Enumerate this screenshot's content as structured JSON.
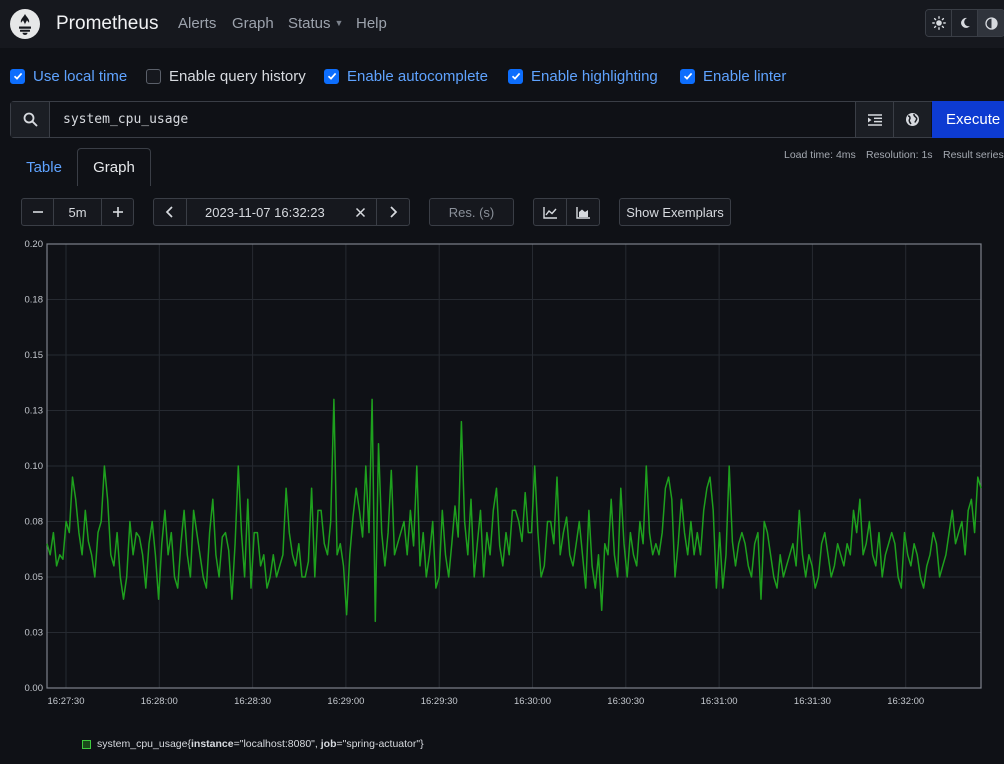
{
  "nav": {
    "brand": "Prometheus",
    "links": {
      "alerts": "Alerts",
      "graph": "Graph",
      "status": "Status",
      "help": "Help"
    }
  },
  "theme": {
    "icons": [
      "sun-icon",
      "moon-icon",
      "half-circle-icon"
    ],
    "active": "half-circle-icon"
  },
  "options": [
    {
      "label": "Use local time",
      "checked": true
    },
    {
      "label": "Enable query history",
      "checked": false
    },
    {
      "label": "Enable autocomplete",
      "checked": true
    },
    {
      "label": "Enable highlighting",
      "checked": true
    },
    {
      "label": "Enable linter",
      "checked": true
    }
  ],
  "query": {
    "expression": "system_cpu_usage",
    "execute_label": "Execute"
  },
  "tabs": {
    "table": "Table",
    "graph": "Graph",
    "active": "graph"
  },
  "stats": {
    "load_time": "Load time: 4ms",
    "resolution": "Resolution: 1s",
    "result_series": "Result series:"
  },
  "controls": {
    "range": "5m",
    "end_time": "2023-11-07 16:32:23",
    "resolution_placeholder": "Res. (s)",
    "show_exemplars": "Show Exemplars"
  },
  "legend": {
    "metric": "system_cpu_usage{",
    "label1_key": "instance",
    "label1_val": "=\"localhost:8080\", ",
    "label2_key": "job",
    "label2_val": "=\"spring-actuator\"}"
  },
  "colors": {
    "accent": "#0d6efd",
    "execute": "#0d3bd1",
    "series": "#1ea01e",
    "link": "#5fa3ff"
  },
  "chart_data": {
    "type": "line",
    "ylim": [
      0,
      0.2
    ],
    "yticks": [
      "0.00",
      "0.03",
      "0.05",
      "0.08",
      "0.10",
      "0.13",
      "0.15",
      "0.18",
      "0.20"
    ],
    "xticks": [
      "16:27:30",
      "16:28:00",
      "16:28:30",
      "16:29:00",
      "16:29:30",
      "16:30:00",
      "16:30:30",
      "16:31:00",
      "16:31:30",
      "16:32:00"
    ],
    "grid": true,
    "legend_position": "bottom-left",
    "series": [
      {
        "values": [
          0.065,
          0.06,
          0.07,
          0.055,
          0.06,
          0.058,
          0.075,
          0.07,
          0.095,
          0.085,
          0.07,
          0.06,
          0.08,
          0.066,
          0.06,
          0.05,
          0.07,
          0.075,
          0.1,
          0.085,
          0.06,
          0.055,
          0.07,
          0.05,
          0.04,
          0.05,
          0.075,
          0.06,
          0.07,
          0.068,
          0.06,
          0.045,
          0.065,
          0.075,
          0.06,
          0.04,
          0.065,
          0.08,
          0.06,
          0.07,
          0.05,
          0.045,
          0.065,
          0.08,
          0.06,
          0.05,
          0.08,
          0.07,
          0.06,
          0.05,
          0.045,
          0.07,
          0.085,
          0.06,
          0.05,
          0.068,
          0.07,
          0.062,
          0.04,
          0.065,
          0.1,
          0.07,
          0.05,
          0.085,
          0.045,
          0.07,
          0.07,
          0.055,
          0.06,
          0.045,
          0.05,
          0.06,
          0.05,
          0.055,
          0.06,
          0.09,
          0.07,
          0.06,
          0.055,
          0.065,
          0.05,
          0.05,
          0.057,
          0.09,
          0.05,
          0.08,
          0.08,
          0.065,
          0.06,
          0.075,
          0.13,
          0.06,
          0.065,
          0.055,
          0.033,
          0.06,
          0.077,
          0.09,
          0.08,
          0.068,
          0.1,
          0.07,
          0.13,
          0.03,
          0.11,
          0.07,
          0.055,
          0.07,
          0.098,
          0.06,
          0.065,
          0.07,
          0.075,
          0.06,
          0.08,
          0.064,
          0.1,
          0.055,
          0.07,
          0.05,
          0.06,
          0.075,
          0.045,
          0.05,
          0.08,
          0.06,
          0.05,
          0.065,
          0.082,
          0.068,
          0.12,
          0.075,
          0.06,
          0.085,
          0.05,
          0.065,
          0.08,
          0.05,
          0.07,
          0.06,
          0.08,
          0.09,
          0.064,
          0.055,
          0.07,
          0.06,
          0.08,
          0.08,
          0.075,
          0.066,
          0.088,
          0.07,
          0.07,
          0.1,
          0.07,
          0.05,
          0.055,
          0.075,
          0.075,
          0.065,
          0.095,
          0.06,
          0.07,
          0.077,
          0.06,
          0.055,
          0.065,
          0.075,
          0.06,
          0.045,
          0.08,
          0.055,
          0.045,
          0.06,
          0.035,
          0.065,
          0.06,
          0.085,
          0.06,
          0.05,
          0.09,
          0.065,
          0.05,
          0.07,
          0.06,
          0.055,
          0.075,
          0.065,
          0.1,
          0.07,
          0.06,
          0.065,
          0.06,
          0.07,
          0.09,
          0.095,
          0.085,
          0.05,
          0.065,
          0.085,
          0.07,
          0.06,
          0.075,
          0.06,
          0.07,
          0.06,
          0.08,
          0.09,
          0.095,
          0.08,
          0.045,
          0.07,
          0.045,
          0.06,
          0.1,
          0.066,
          0.055,
          0.065,
          0.07,
          0.065,
          0.055,
          0.05,
          0.065,
          0.07,
          0.04,
          0.075,
          0.07,
          0.06,
          0.05,
          0.045,
          0.06,
          0.05,
          0.055,
          0.06,
          0.065,
          0.055,
          0.08,
          0.06,
          0.05,
          0.06,
          0.055,
          0.045,
          0.05,
          0.065,
          0.07,
          0.06,
          0.05,
          0.055,
          0.065,
          0.06,
          0.055,
          0.065,
          0.06,
          0.08,
          0.07,
          0.085,
          0.06,
          0.065,
          0.075,
          0.06,
          0.055,
          0.07,
          0.05,
          0.06,
          0.065,
          0.07,
          0.065,
          0.05,
          0.045,
          0.07,
          0.06,
          0.055,
          0.065,
          0.06,
          0.05,
          0.045,
          0.055,
          0.06,
          0.07,
          0.065,
          0.05,
          0.055,
          0.06,
          0.07,
          0.08,
          0.065,
          0.07,
          0.075,
          0.06,
          0.08,
          0.085,
          0.07,
          0.095,
          0.09
        ]
      }
    ]
  }
}
